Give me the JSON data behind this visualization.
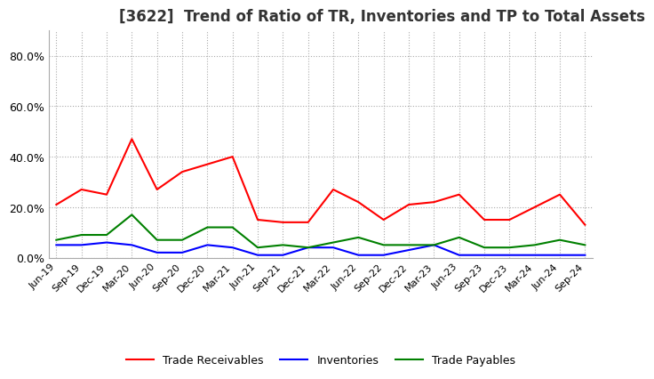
{
  "title": "[3622]  Trend of Ratio of TR, Inventories and TP to Total Assets",
  "x_labels": [
    "Jun-19",
    "Sep-19",
    "Dec-19",
    "Mar-20",
    "Jun-20",
    "Sep-20",
    "Dec-20",
    "Mar-21",
    "Jun-21",
    "Sep-21",
    "Dec-21",
    "Mar-22",
    "Jun-22",
    "Sep-22",
    "Dec-22",
    "Mar-23",
    "Jun-23",
    "Sep-23",
    "Dec-23",
    "Mar-24",
    "Jun-24",
    "Sep-24"
  ],
  "trade_receivables": [
    0.21,
    0.27,
    0.25,
    0.47,
    0.27,
    0.34,
    0.37,
    0.4,
    0.15,
    0.14,
    0.14,
    0.27,
    0.22,
    0.15,
    0.21,
    0.22,
    0.25,
    0.15,
    0.15,
    0.2,
    0.25,
    0.13
  ],
  "inventories": [
    0.05,
    0.05,
    0.06,
    0.05,
    0.02,
    0.02,
    0.05,
    0.04,
    0.01,
    0.01,
    0.04,
    0.04,
    0.01,
    0.01,
    0.03,
    0.05,
    0.01,
    0.01,
    0.01,
    0.01,
    0.01,
    0.01
  ],
  "trade_payables": [
    0.07,
    0.09,
    0.09,
    0.17,
    0.07,
    0.07,
    0.12,
    0.12,
    0.04,
    0.05,
    0.04,
    0.06,
    0.08,
    0.05,
    0.05,
    0.05,
    0.08,
    0.04,
    0.04,
    0.05,
    0.07,
    0.05
  ],
  "tr_color": "#ff0000",
  "inv_color": "#0000ff",
  "tp_color": "#008000",
  "ylim": [
    0.0,
    0.9
  ],
  "yticks": [
    0.0,
    0.2,
    0.4,
    0.6,
    0.8
  ],
  "ytick_labels": [
    "0.0%",
    "20.0%",
    "40.0%",
    "60.0%",
    "80.0%"
  ],
  "grid_color": "#aaaaaa",
  "background_color": "#ffffff",
  "title_fontsize": 12,
  "title_color": "#333333",
  "legend_labels": [
    "Trade Receivables",
    "Inventories",
    "Trade Payables"
  ]
}
